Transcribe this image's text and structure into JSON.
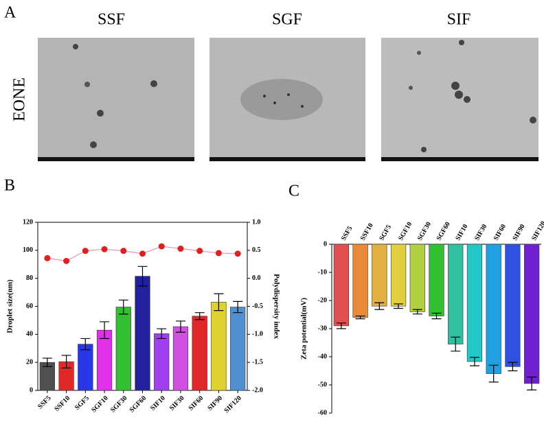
{
  "panel_a": {
    "label": "A",
    "columns": [
      "SSF",
      "SGF",
      "SIF"
    ],
    "row": "EONE"
  },
  "chart_data": [
    {
      "type": "bar",
      "panel": "B",
      "categories": [
        "SSF5",
        "SSF10",
        "SGF5",
        "SGF10",
        "SGF30",
        "SGF60",
        "SIF10",
        "SIF30",
        "SIF60",
        "SIF90",
        "SIF120"
      ],
      "values": [
        20,
        20.5,
        33,
        43,
        59.5,
        81.5,
        40.5,
        45.5,
        53,
        63,
        59.5
      ],
      "errors": [
        3,
        4.5,
        4,
        6,
        5,
        7,
        3.5,
        4,
        2.5,
        6,
        4
      ],
      "colors": [
        "#505050",
        "#e02828",
        "#2838e8",
        "#e030e8",
        "#30c030",
        "#2020a0",
        "#a040f0",
        "#d050e0",
        "#e02828",
        "#e0d030",
        "#5090d0"
      ],
      "ylabel": "Droplet size(nm)",
      "ylim": [
        0,
        120
      ],
      "yticks": [
        0,
        20,
        40,
        60,
        80,
        100,
        120
      ],
      "y2label": "Polydispersity index",
      "y2lim": [
        -2,
        1
      ],
      "y2ticks": [
        {
          "value": -2,
          "label": "-2.0"
        },
        {
          "value": -1.5,
          "label": "-1.5"
        },
        {
          "value": -1,
          "label": "-1.0"
        },
        {
          "value": -0.5,
          "label": "-0.5"
        },
        {
          "value": 0,
          "label": "0.0"
        },
        {
          "value": 0.5,
          "label": "0.5"
        },
        {
          "value": 1,
          "label": "1.0"
        }
      ],
      "series": [
        {
          "type": "line",
          "axis": "y2",
          "color": "#e02020",
          "line_color": "#f090b0",
          "values": [
            0.36,
            0.31,
            0.49,
            0.52,
            0.49,
            0.44,
            0.57,
            0.53,
            0.49,
            0.45,
            0.44
          ]
        }
      ]
    },
    {
      "type": "bar",
      "panel": "C",
      "category_axis": "top",
      "categories": [
        "SSF5",
        "SSF10",
        "SGF5",
        "SGF10",
        "SGF30",
        "SGF60",
        "SIF10",
        "SIF30",
        "SIF60",
        "SIF90",
        "SIF120"
      ],
      "values": [
        -29,
        -26,
        -22,
        -22,
        -24,
        -25.5,
        -35.5,
        -41.7,
        -46,
        -43.5,
        -49.5
      ],
      "errors": [
        1,
        0.5,
        1.2,
        0.8,
        0.8,
        1,
        2.5,
        1.5,
        3,
        1.5,
        2.3
      ],
      "colors": [
        "#e05050",
        "#e88a3a",
        "#e0b040",
        "#e0d040",
        "#b0d040",
        "#30c030",
        "#30c0a0",
        "#20c8c8",
        "#20a0e0",
        "#3050e0",
        "#7020d0"
      ],
      "ylabel": "Zeta potential(mV)",
      "ylim": [
        -60,
        0
      ],
      "yticks": [
        -60,
        -50,
        -40,
        -30,
        -20,
        -10,
        0
      ]
    }
  ]
}
